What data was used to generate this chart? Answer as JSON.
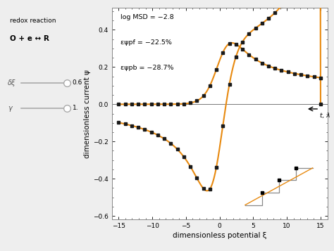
{
  "xlabel": "dimensionless potential ξ",
  "ylabel": "dimensionless current ψ",
  "xlim": [
    -16,
    16
  ],
  "ylim": [
    -0.62,
    0.52
  ],
  "xticks": [
    -15,
    -10,
    -5,
    0,
    5,
    10,
    15
  ],
  "yticks": [
    -0.6,
    -0.4,
    -0.2,
    0.0,
    0.2,
    0.4
  ],
  "ann1": "log MSD = −2.8",
  "ann2": "εψpf = −22.5%",
  "ann3": "εψpb = −28.7%",
  "cv_color": "#E88A10",
  "dot_color": "#1a1a1a",
  "bg_color": "#eeeeee",
  "plot_bg": "#ffffff",
  "left_panel_bg": "#e8e8e8",
  "cv_peak_fwd": 0.33,
  "cv_peak_rev": -0.465,
  "label_redox": "redox reaction",
  "label_rxn": "O + e ↔ R",
  "label_dxi": "δξ",
  "label_gamma": "γ",
  "val_dxi": "0.6",
  "val_gamma": "1."
}
